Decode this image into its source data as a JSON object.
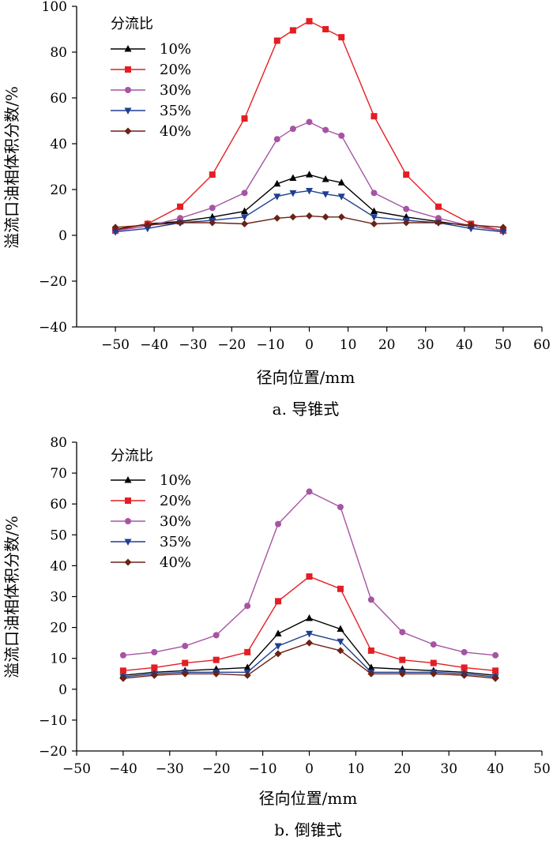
{
  "colors": {
    "s10": "#000000",
    "s20": "#e31e24",
    "s30": "#a654a3",
    "s35": "#1f3f93",
    "s40": "#6b2217"
  },
  "chart_data": [
    {
      "type": "line",
      "caption": "a. 导锥式",
      "xlabel": "径向位置/mm",
      "ylabel": "溢流口油相体积分数/%",
      "xlim": [
        -60,
        60
      ],
      "ylim": [
        -40,
        100
      ],
      "xticks": [
        -50,
        -40,
        -30,
        -20,
        -10,
        0,
        10,
        20,
        30,
        40,
        50,
        60
      ],
      "yticks": [
        -40,
        -20,
        0,
        20,
        40,
        60,
        80,
        100
      ],
      "legend_title": "分流比",
      "legend_position": "top-left",
      "x": [
        -50,
        -41.7,
        -33.3,
        -25,
        -16.7,
        -8.3,
        -4.2,
        0,
        4.2,
        8.3,
        16.7,
        25,
        33.3,
        41.7,
        50
      ],
      "series": [
        {
          "name": "10%",
          "marker": "triangle-up",
          "color": "#000000",
          "values": [
            2.5,
            5,
            6,
            8,
            10.5,
            22.5,
            25,
            26.5,
            24.5,
            23,
            10.5,
            8,
            6,
            4,
            2
          ]
        },
        {
          "name": "20%",
          "marker": "square",
          "color": "#e31e24",
          "values": [
            2,
            5,
            12.5,
            26.5,
            51,
            85,
            89.5,
            93.5,
            90,
            86.5,
            52,
            26.5,
            12.5,
            5,
            2
          ]
        },
        {
          "name": "30%",
          "marker": "circle",
          "color": "#a654a3",
          "values": [
            2,
            4,
            7.5,
            12,
            18.5,
            42,
            46.5,
            49.5,
            46,
            43.5,
            18.5,
            11.5,
            7.5,
            4,
            2
          ]
        },
        {
          "name": "35%",
          "marker": "triangle-down",
          "color": "#1f3f93",
          "values": [
            1.5,
            3,
            5.5,
            6.5,
            8,
            17,
            18.5,
            19.5,
            18,
            17,
            8,
            6.5,
            5.5,
            3,
            1.5
          ]
        },
        {
          "name": "40%",
          "marker": "diamond",
          "color": "#6b2217",
          "values": [
            3.5,
            4.5,
            5.5,
            5.5,
            5,
            7.5,
            8,
            8.5,
            8,
            8,
            5,
            5.5,
            5.5,
            4.5,
            3.5
          ]
        }
      ]
    },
    {
      "type": "line",
      "caption": "b. 倒锥式",
      "xlabel": "径向位置/mm",
      "ylabel": "溢流口油相体积分数/%",
      "xlim": [
        -50,
        50
      ],
      "ylim": [
        -20,
        80
      ],
      "xticks": [
        -50,
        -40,
        -30,
        -20,
        -10,
        0,
        10,
        20,
        30,
        40,
        50
      ],
      "yticks": [
        -20,
        -10,
        0,
        10,
        20,
        30,
        40,
        50,
        60,
        70,
        80
      ],
      "legend_title": "分流比",
      "legend_position": "top-left",
      "x": [
        -40,
        -33.3,
        -26.7,
        -20,
        -13.3,
        -6.7,
        0,
        6.7,
        13.3,
        20,
        26.7,
        33.3,
        40
      ],
      "series": [
        {
          "name": "10%",
          "marker": "triangle-up",
          "color": "#000000",
          "values": [
            4.5,
            5.5,
            6,
            6.5,
            7,
            18,
            23,
            19.5,
            7,
            6.5,
            6,
            5.5,
            4.5
          ]
        },
        {
          "name": "20%",
          "marker": "square",
          "color": "#e31e24",
          "values": [
            6,
            7,
            8.5,
            9.5,
            12,
            28.5,
            36.5,
            32.5,
            12.5,
            9.5,
            8.5,
            7,
            6
          ]
        },
        {
          "name": "30%",
          "marker": "circle",
          "color": "#a654a3",
          "values": [
            11,
            12,
            14,
            17.5,
            27,
            53.5,
            64,
            59,
            29,
            18.5,
            14.5,
            12,
            11
          ]
        },
        {
          "name": "35%",
          "marker": "triangle-down",
          "color": "#1f3f93",
          "values": [
            4,
            5,
            5.5,
            5.5,
            5.5,
            14,
            18,
            15.5,
            5.5,
            5.5,
            5.5,
            5,
            4
          ]
        },
        {
          "name": "40%",
          "marker": "diamond",
          "color": "#6b2217",
          "values": [
            3.5,
            4.5,
            5,
            5,
            4.5,
            11.5,
            15,
            12.5,
            5,
            5,
            5,
            4.5,
            3.5
          ]
        }
      ]
    }
  ]
}
